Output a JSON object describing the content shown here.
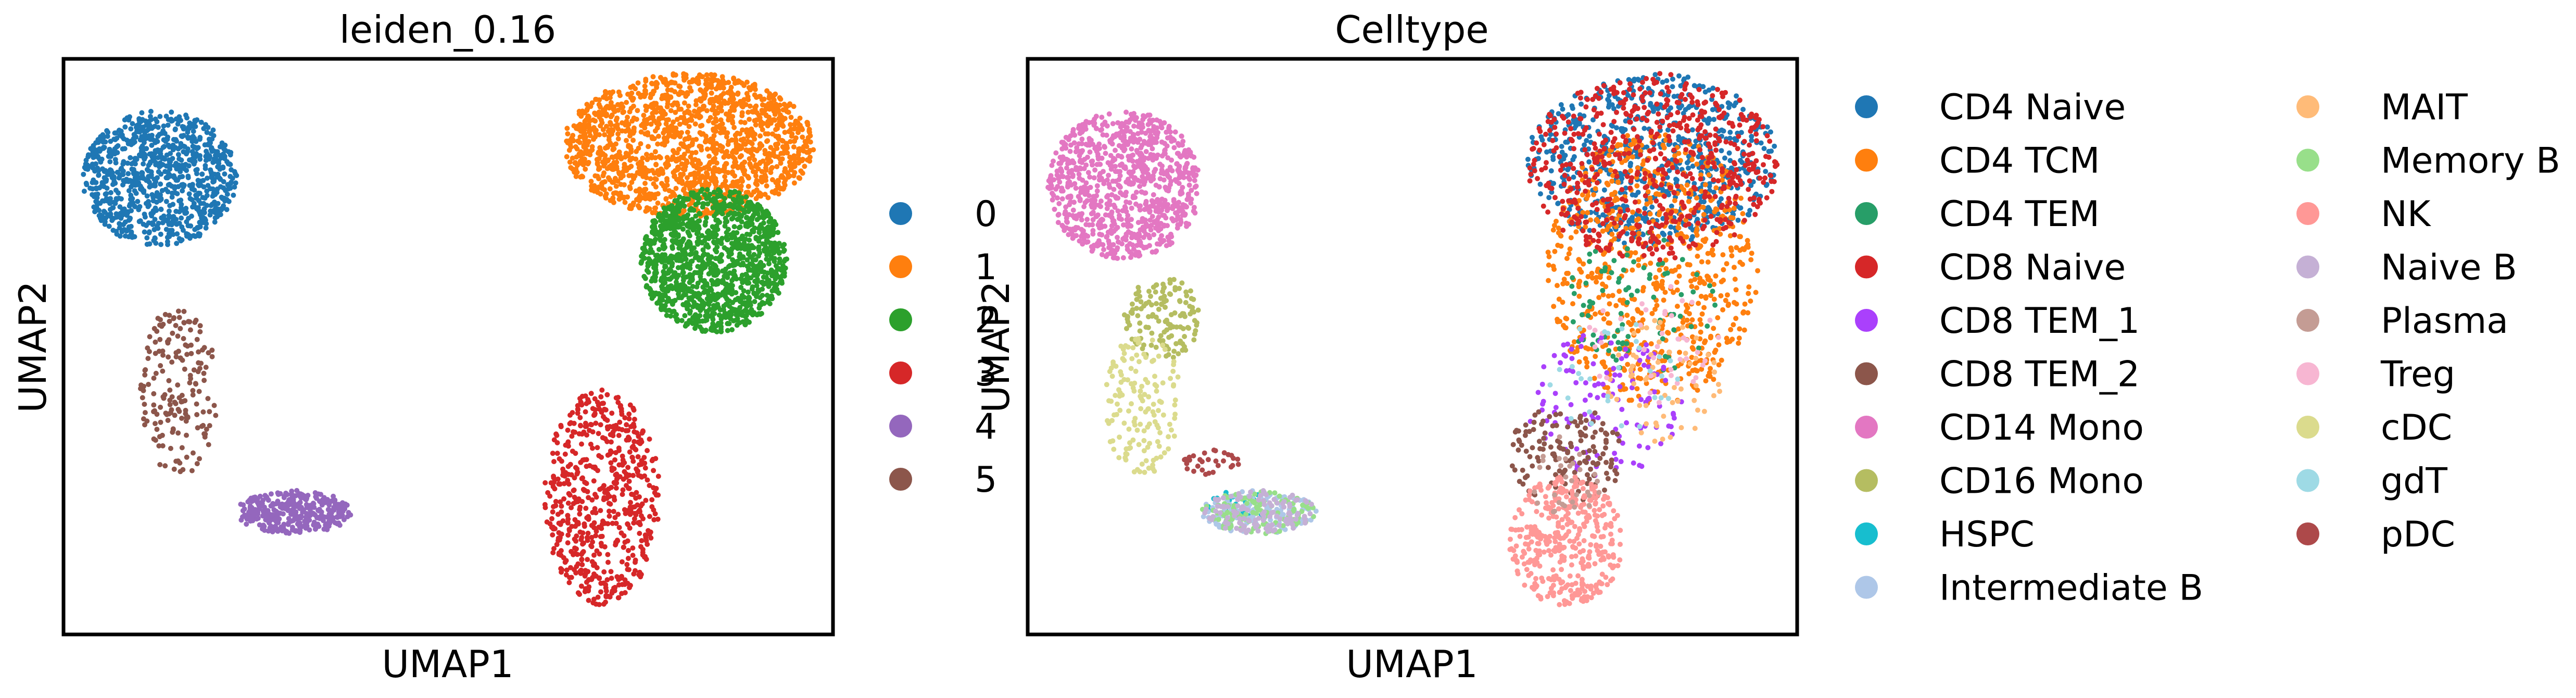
{
  "figure": {
    "panels": [
      {
        "title": "leiden_0.16",
        "xlabel": "UMAP1",
        "ylabel": "UMAP2"
      },
      {
        "title": "Celltype",
        "xlabel": "UMAP1",
        "ylabel": "UMAP2"
      }
    ]
  },
  "chart_data": [
    {
      "type": "scatter",
      "title": "leiden_0.16",
      "xlabel": "UMAP1",
      "ylabel": "UMAP2",
      "grid": false,
      "ticks": false,
      "legend_position": "right",
      "series": [
        {
          "name": "0",
          "color": "#1f77b4",
          "regions": [
            {
              "x": [
                -0.95,
                -0.55
              ],
              "y": [
                0.35,
                0.82
              ],
              "n": 900
            }
          ]
        },
        {
          "name": "1",
          "color": "#ff7f0e",
          "regions": [
            {
              "x": [
                0.3,
                0.95
              ],
              "y": [
                0.45,
                0.95
              ],
              "n": 1500
            }
          ]
        },
        {
          "name": "2",
          "color": "#2ca02c",
          "regions": [
            {
              "x": [
                0.5,
                0.88
              ],
              "y": [
                0.05,
                0.55
              ],
              "n": 1200
            }
          ]
        },
        {
          "name": "3",
          "color": "#d62728",
          "regions": [
            {
              "x": [
                0.25,
                0.55
              ],
              "y": [
                -0.9,
                -0.15
              ],
              "n": 600
            }
          ]
        },
        {
          "name": "4",
          "color": "#9467bd",
          "regions": [
            {
              "x": [
                -0.55,
                -0.25
              ],
              "y": [
                -0.65,
                -0.5
              ],
              "n": 350
            }
          ]
        },
        {
          "name": "5",
          "color": "#8c564b",
          "regions": [
            {
              "x": [
                -0.8,
                -0.6
              ],
              "y": [
                -0.45,
                0.15
              ],
              "n": 180
            }
          ]
        }
      ]
    },
    {
      "type": "scatter",
      "title": "Celltype",
      "xlabel": "UMAP1",
      "ylabel": "UMAP2",
      "grid": false,
      "ticks": false,
      "legend_position": "right",
      "series": [
        {
          "name": "CD4 Naive",
          "color": "#1f77b4",
          "regions": [
            {
              "x": [
                0.3,
                0.95
              ],
              "y": [
                0.35,
                0.95
              ],
              "n": 700
            }
          ]
        },
        {
          "name": "CD4 TCM",
          "color": "#ff7f0e",
          "regions": [
            {
              "x": [
                0.35,
                0.9
              ],
              "y": [
                -0.2,
                0.75
              ],
              "n": 700
            }
          ]
        },
        {
          "name": "CD4 TEM",
          "color": "#279e68",
          "regions": [
            {
              "x": [
                0.4,
                0.8
              ],
              "y": [
                -0.1,
                0.4
              ],
              "n": 90
            }
          ]
        },
        {
          "name": "CD8 Naive",
          "color": "#d62728",
          "regions": [
            {
              "x": [
                0.3,
                0.95
              ],
              "y": [
                0.3,
                0.95
              ],
              "n": 600
            }
          ]
        },
        {
          "name": "CD8 TEM_1",
          "color": "#aa40fc",
          "regions": [
            {
              "x": [
                0.3,
                0.7
              ],
              "y": [
                -0.45,
                0.05
              ],
              "n": 120
            }
          ]
        },
        {
          "name": "CD8 TEM_2",
          "color": "#8c564b",
          "regions": [
            {
              "x": [
                0.25,
                0.55
              ],
              "y": [
                -0.55,
                -0.2
              ],
              "n": 140
            }
          ]
        },
        {
          "name": "CD14 Mono",
          "color": "#e377c2",
          "regions": [
            {
              "x": [
                -0.95,
                -0.55
              ],
              "y": [
                0.3,
                0.82
              ],
              "n": 900
            }
          ]
        },
        {
          "name": "CD16 Mono",
          "color": "#b5bd61",
          "regions": [
            {
              "x": [
                -0.75,
                -0.55
              ],
              "y": [
                -0.05,
                0.25
              ],
              "n": 140
            }
          ]
        },
        {
          "name": "HSPC",
          "color": "#17becf",
          "regions": [
            {
              "x": [
                -0.55,
                -0.35
              ],
              "y": [
                -0.6,
                -0.5
              ],
              "n": 25
            }
          ]
        },
        {
          "name": "Intermediate B",
          "color": "#aec7e8",
          "regions": [
            {
              "x": [
                -0.55,
                -0.25
              ],
              "y": [
                -0.65,
                -0.5
              ],
              "n": 140
            }
          ]
        },
        {
          "name": "MAIT",
          "color": "#ffbb78",
          "regions": [
            {
              "x": [
                0.5,
                0.8
              ],
              "y": [
                -0.35,
                0.1
              ],
              "n": 60
            }
          ]
        },
        {
          "name": "Memory B",
          "color": "#98df8a",
          "regions": [
            {
              "x": [
                -0.55,
                -0.25
              ],
              "y": [
                -0.65,
                -0.5
              ],
              "n": 120
            }
          ]
        },
        {
          "name": "NK",
          "color": "#ff9896",
          "regions": [
            {
              "x": [
                0.25,
                0.55
              ],
              "y": [
                -0.9,
                -0.45
              ],
              "n": 400
            }
          ]
        },
        {
          "name": "Naive B",
          "color": "#c5b0d5",
          "regions": [
            {
              "x": [
                -0.55,
                -0.25
              ],
              "y": [
                -0.65,
                -0.5
              ],
              "n": 120
            }
          ]
        },
        {
          "name": "Plasma",
          "color": "#c49c94",
          "regions": [
            {
              "x": [
                0.3,
                0.5
              ],
              "y": [
                -0.6,
                -0.3
              ],
              "n": 30
            }
          ]
        },
        {
          "name": "Treg",
          "color": "#f7b6d2",
          "regions": [
            {
              "x": [
                0.45,
                0.8
              ],
              "y": [
                -0.2,
                0.25
              ],
              "n": 40
            }
          ]
        },
        {
          "name": "cDC",
          "color": "#dbdb8d",
          "regions": [
            {
              "x": [
                -0.8,
                -0.6
              ],
              "y": [
                -0.45,
                0.05
              ],
              "n": 150
            }
          ]
        },
        {
          "name": "gdT",
          "color": "#9edae5",
          "regions": [
            {
              "x": [
                0.35,
                0.7
              ],
              "y": [
                -0.3,
                0.1
              ],
              "n": 30
            }
          ]
        },
        {
          "name": "pDC",
          "color": "#ad494a",
          "regions": [
            {
              "x": [
                -0.6,
                -0.45
              ],
              "y": [
                -0.45,
                -0.35
              ],
              "n": 30
            }
          ]
        }
      ]
    }
  ]
}
